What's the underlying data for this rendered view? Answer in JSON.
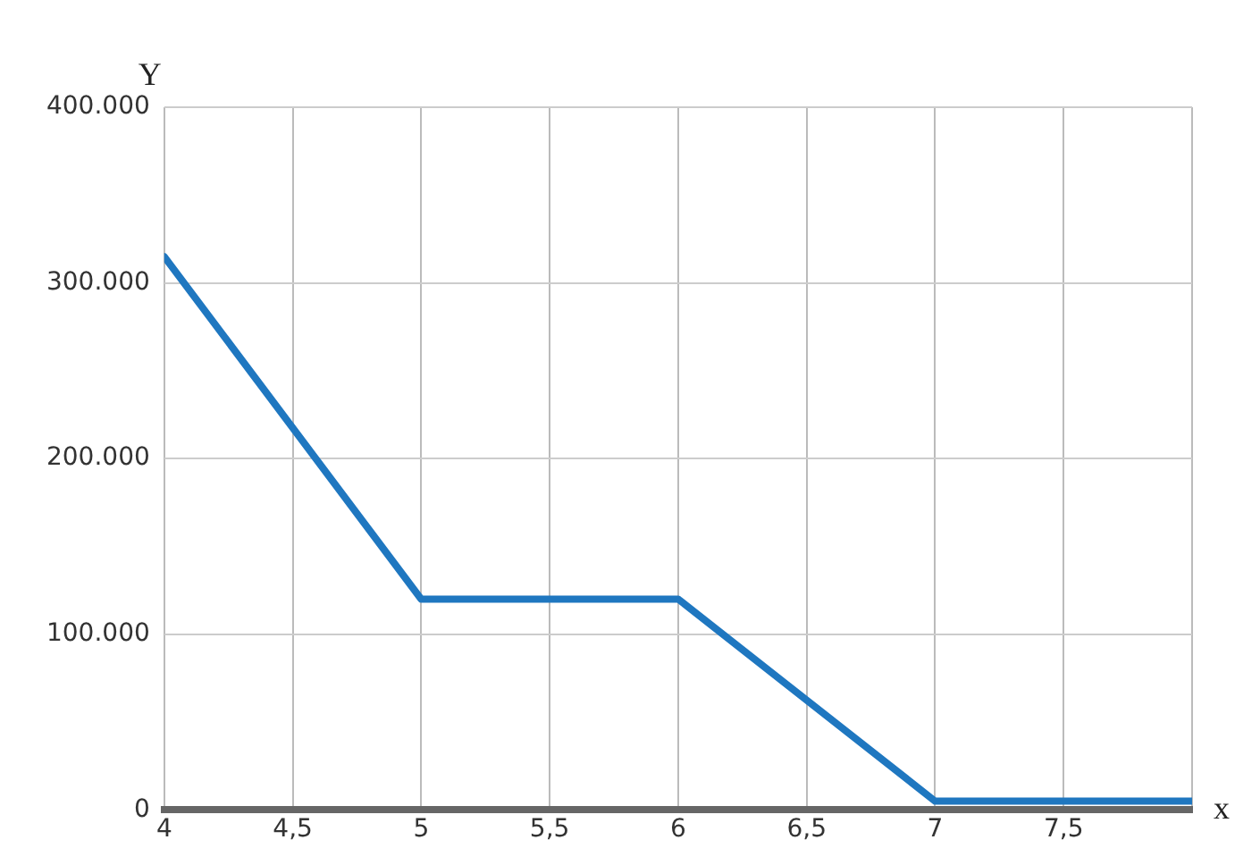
{
  "chart_data": {
    "type": "line",
    "xlabel": "x",
    "ylabel": "Y",
    "x": [
      4,
      5,
      6,
      7,
      8
    ],
    "series": [
      {
        "color": "#1f77c0",
        "values": [
          315000,
          120000,
          120000,
          5000,
          5000
        ]
      }
    ],
    "xlim": [
      4,
      8
    ],
    "ylim": [
      0,
      400000
    ],
    "xticks": [
      4,
      {
        "value": 4.5,
        "label": "4,5"
      },
      5,
      {
        "value": 5.5,
        "label": "5,5"
      },
      6,
      {
        "value": 6.5,
        "label": "6,5"
      },
      7,
      {
        "value": 7.5,
        "label": "7,5"
      },
      {
        "value": 8,
        "label": null
      }
    ],
    "yticks": [
      0,
      {
        "value": 100000,
        "label": "100.000"
      },
      {
        "value": 200000,
        "label": "200.000"
      },
      {
        "value": 300000,
        "label": "300.000"
      },
      {
        "value": 400000,
        "label": "400.000"
      }
    ],
    "grid": true,
    "legend": false,
    "marker": "none",
    "line_style": "solid"
  }
}
